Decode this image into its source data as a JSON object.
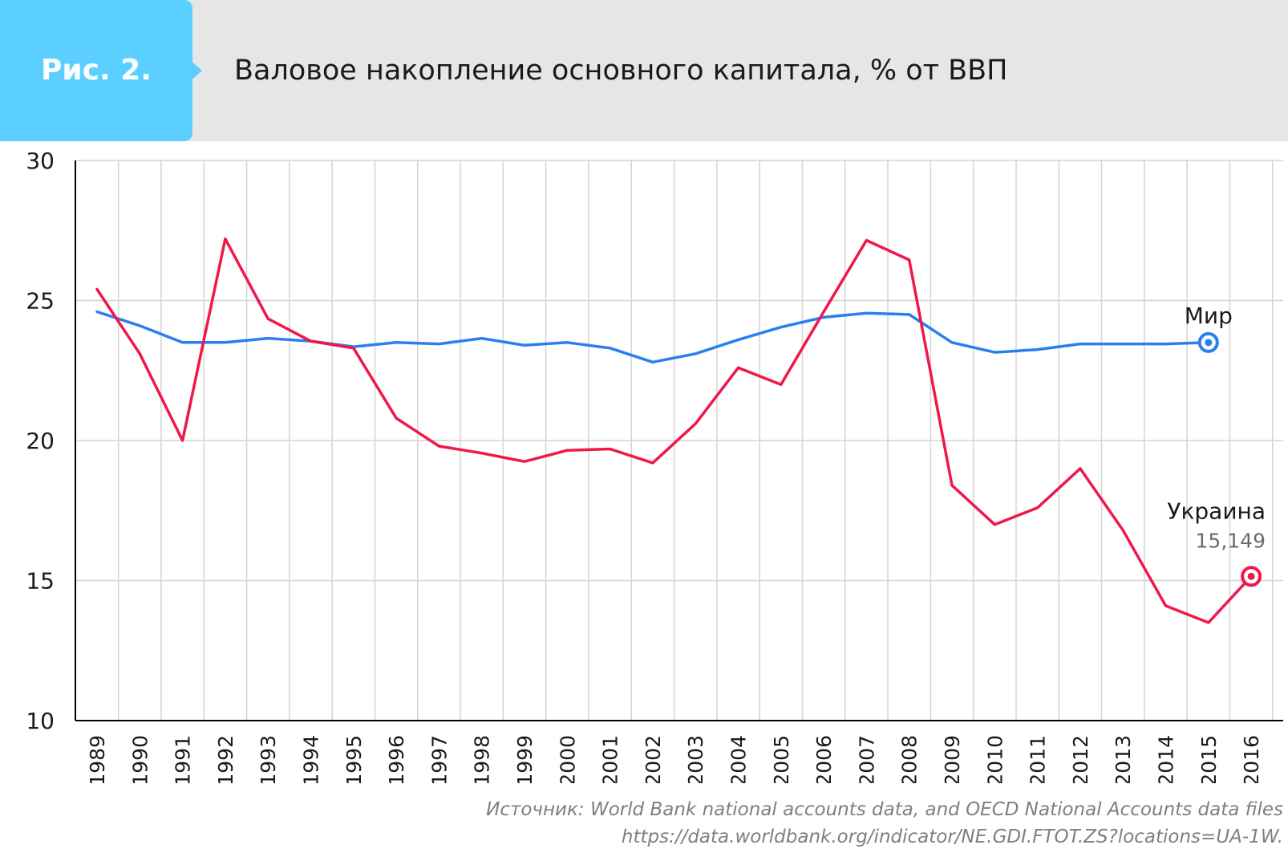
{
  "header": {
    "tag": "Рис. 2.",
    "title": "Валовое накопление основного капитала, % от ВВП"
  },
  "source": {
    "line1": "Источник: World Bank national accounts data, and OECD National Accounts data files",
    "line2": "https://data.worldbank.org/indicator/NE.GDI.FTOT.ZS?locations=UA-1W."
  },
  "colors": {
    "world": "#2a7fef",
    "ukraine": "#f0184a",
    "grid": "#d4d4d4",
    "axis": "#000000"
  },
  "chart_data": {
    "type": "line",
    "x": [
      "1989",
      "1990",
      "1991",
      "1992",
      "1993",
      "1994",
      "1995",
      "1996",
      "1997",
      "1998",
      "1999",
      "2000",
      "2001",
      "2002",
      "2003",
      "2004",
      "2005",
      "2006",
      "2007",
      "2008",
      "2009",
      "2010",
      "2011",
      "2012",
      "2013",
      "2014",
      "2015",
      "2016"
    ],
    "ylim": [
      10,
      30
    ],
    "yticks": [
      "10",
      "15",
      "20",
      "25",
      "30"
    ],
    "grid": true,
    "series": [
      {
        "name": "Мир",
        "color": "#2a7fef",
        "values": [
          24.6,
          24.1,
          23.5,
          23.5,
          23.65,
          23.55,
          23.35,
          23.5,
          23.45,
          23.65,
          23.4,
          23.5,
          23.3,
          22.8,
          23.1,
          23.6,
          24.05,
          24.4,
          24.55,
          24.5,
          23.5,
          23.15,
          23.25,
          23.45,
          23.45,
          23.45,
          23.5,
          null
        ]
      },
      {
        "name": "Украина",
        "color": "#f0184a",
        "end_label": "15,149",
        "values": [
          25.4,
          23.1,
          20.0,
          27.2,
          24.35,
          23.55,
          23.3,
          20.8,
          19.8,
          19.55,
          19.25,
          19.65,
          19.7,
          19.2,
          20.6,
          22.6,
          22.0,
          24.6,
          27.15,
          26.45,
          18.4,
          17.0,
          17.6,
          19.0,
          16.8,
          14.1,
          13.5,
          15.149
        ]
      }
    ]
  }
}
